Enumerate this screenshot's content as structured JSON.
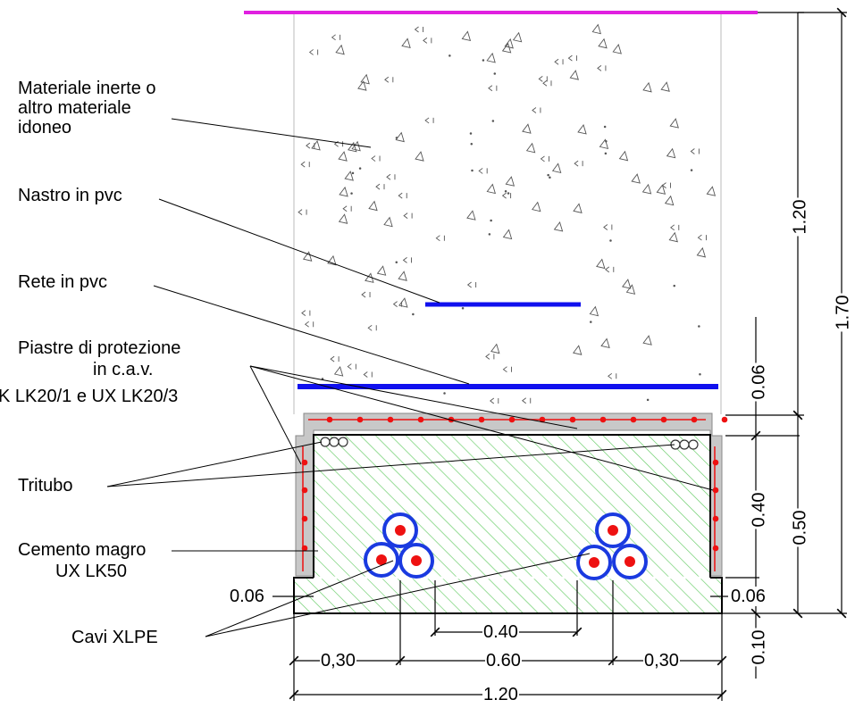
{
  "labels": {
    "inert_l1": "Materiale inerte o",
    "inert_l2": "altro materiale",
    "inert_l3": "idoneo",
    "tape": "Nastro in pvc",
    "mesh": "Rete in pvc",
    "plates_l1": "Piastre di protezione",
    "plates_l2": "in c.a.v.",
    "plates_l3": "K LK20/1 e UX LK20/3",
    "tritube": "Tritubo",
    "concrete_l1": "Cemento magro",
    "concrete_l2": "UX LK50",
    "cables": "Cavi XLPE"
  },
  "dimensions": {
    "d_1_20_vert": "1.20",
    "d_1_70": "1.70",
    "d_0_06_top": "0.06",
    "d_0_40_vert": "0.40",
    "d_0_50": "0.50",
    "d_0_10": "0.10",
    "d_0_06_left": "0.06",
    "d_0_06_right": "0.06",
    "d_0_40_horiz": "0.40",
    "d_0_30_left": "0,30",
    "d_0_60": "0.60",
    "d_0_30_right": "0,30",
    "d_1_20_horiz": "1.20"
  },
  "colors": {
    "ground_line": "#e020e0",
    "pvc_blue": "#1010ee",
    "rebar_red": "#ee1111",
    "plate_gray": "#c8c8c8",
    "hatch_green": "#66cc66",
    "cable_blue": "#1a3ae0"
  }
}
